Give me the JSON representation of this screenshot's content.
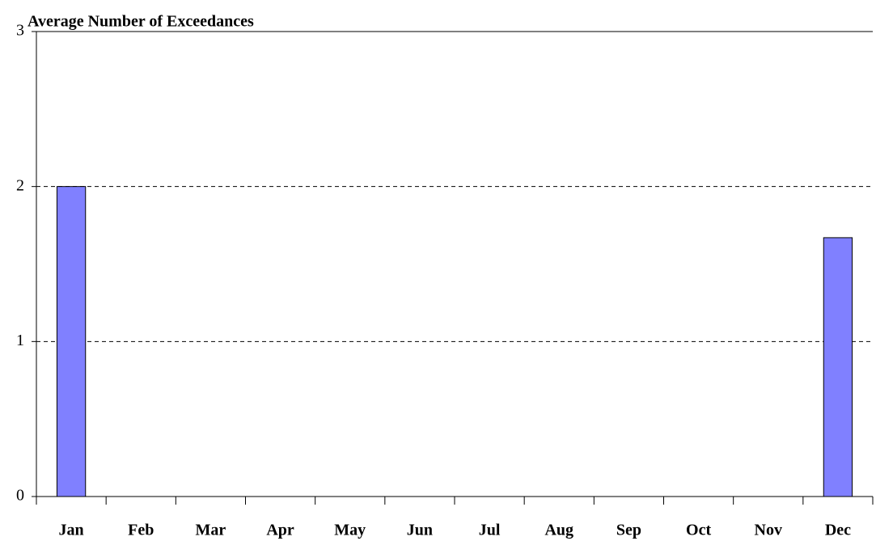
{
  "chart_data": {
    "type": "bar",
    "title": "Average Number of Exceedances",
    "categories": [
      "Jan",
      "Feb",
      "Mar",
      "Apr",
      "May",
      "Jun",
      "Jul",
      "Aug",
      "Sep",
      "Oct",
      "Nov",
      "Dec"
    ],
    "values": [
      2,
      0,
      0,
      0,
      0,
      0,
      0,
      0,
      0,
      0,
      0,
      1.67
    ],
    "color": "#8080ff",
    "ylim": [
      0,
      3
    ],
    "yticks": [
      0,
      1,
      2,
      3
    ],
    "grid": true
  }
}
